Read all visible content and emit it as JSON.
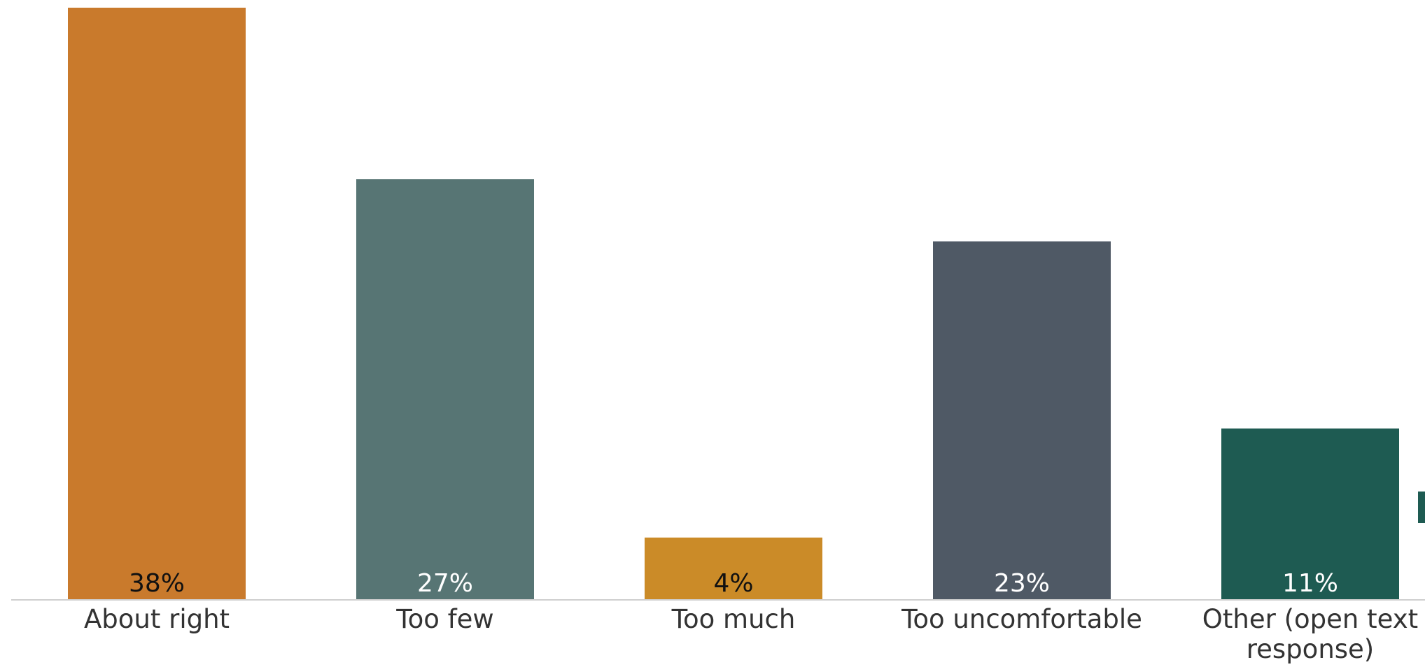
{
  "chart_data": {
    "type": "bar",
    "title": "",
    "xlabel": "",
    "ylabel": "",
    "ylim": [
      0,
      38
    ],
    "grid": false,
    "legend": "none",
    "categories": [
      {
        "label_lines": [
          "About right"
        ]
      },
      {
        "label_lines": [
          "Too few"
        ]
      },
      {
        "label_lines": [
          "Too much"
        ]
      },
      {
        "label_lines": [
          "Too uncomfortable"
        ]
      },
      {
        "label_lines": [
          "Other (open text",
          "response)"
        ]
      }
    ],
    "values": [
      38,
      27,
      4,
      23,
      11
    ],
    "value_labels": [
      "38%",
      "27%",
      "4%",
      "23%",
      "11%"
    ],
    "colors": [
      "#C97A2C",
      "#577574",
      "#CB8B28",
      "#4F5965",
      "#1E5B52"
    ],
    "value_label_colors": [
      "#111111",
      "#ffffff",
      "#111111",
      "#ffffff",
      "#ffffff"
    ],
    "axis_color": "#cfcfcf",
    "tick_label_color": "#333333"
  }
}
